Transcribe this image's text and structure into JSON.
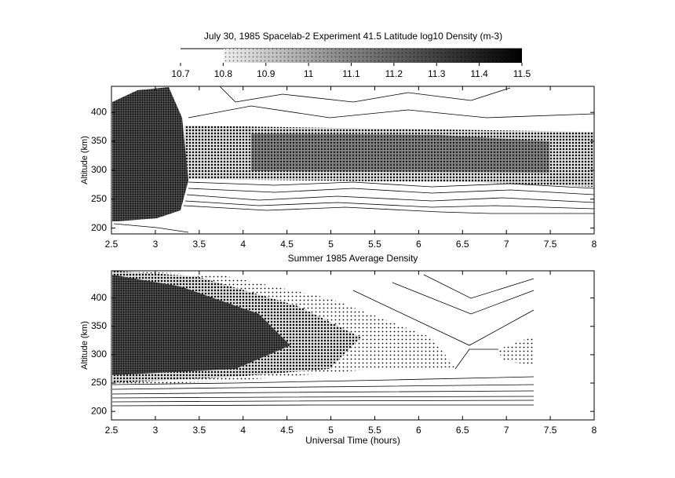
{
  "chart_data": [
    {
      "type": "contour",
      "title": "July 30, 1985  Spacelab-2 Experiment  41.5 Latitude  log10 Density (m-3)",
      "colorbar": {
        "lim": [
          10.7,
          11.5
        ],
        "ticks": [
          10.7,
          10.8,
          10.9,
          11,
          11.1,
          11.2,
          11.3,
          11.4,
          11.5
        ]
      },
      "ylabel": "Altitude (km)",
      "xlim": [
        2.5,
        8
      ],
      "xticks": [
        2.5,
        3,
        3.5,
        4,
        4.5,
        5,
        5.5,
        6,
        6.5,
        7,
        7.5,
        8
      ],
      "ylim": [
        190,
        445
      ],
      "yticks": [
        200,
        250,
        300,
        350,
        400
      ]
    },
    {
      "type": "contour",
      "title": "Summer 1985 Average Density",
      "ylabel": "Altitude (km)",
      "xlabel": "Universal Time (hours)",
      "xlim": [
        2.5,
        8
      ],
      "xticks": [
        2.5,
        3,
        3.5,
        4,
        4.5,
        5,
        5.5,
        6,
        6.5,
        7,
        7.5,
        8
      ],
      "ylim": [
        185,
        448
      ],
      "yticks": [
        200,
        250,
        300,
        350,
        400
      ]
    }
  ]
}
